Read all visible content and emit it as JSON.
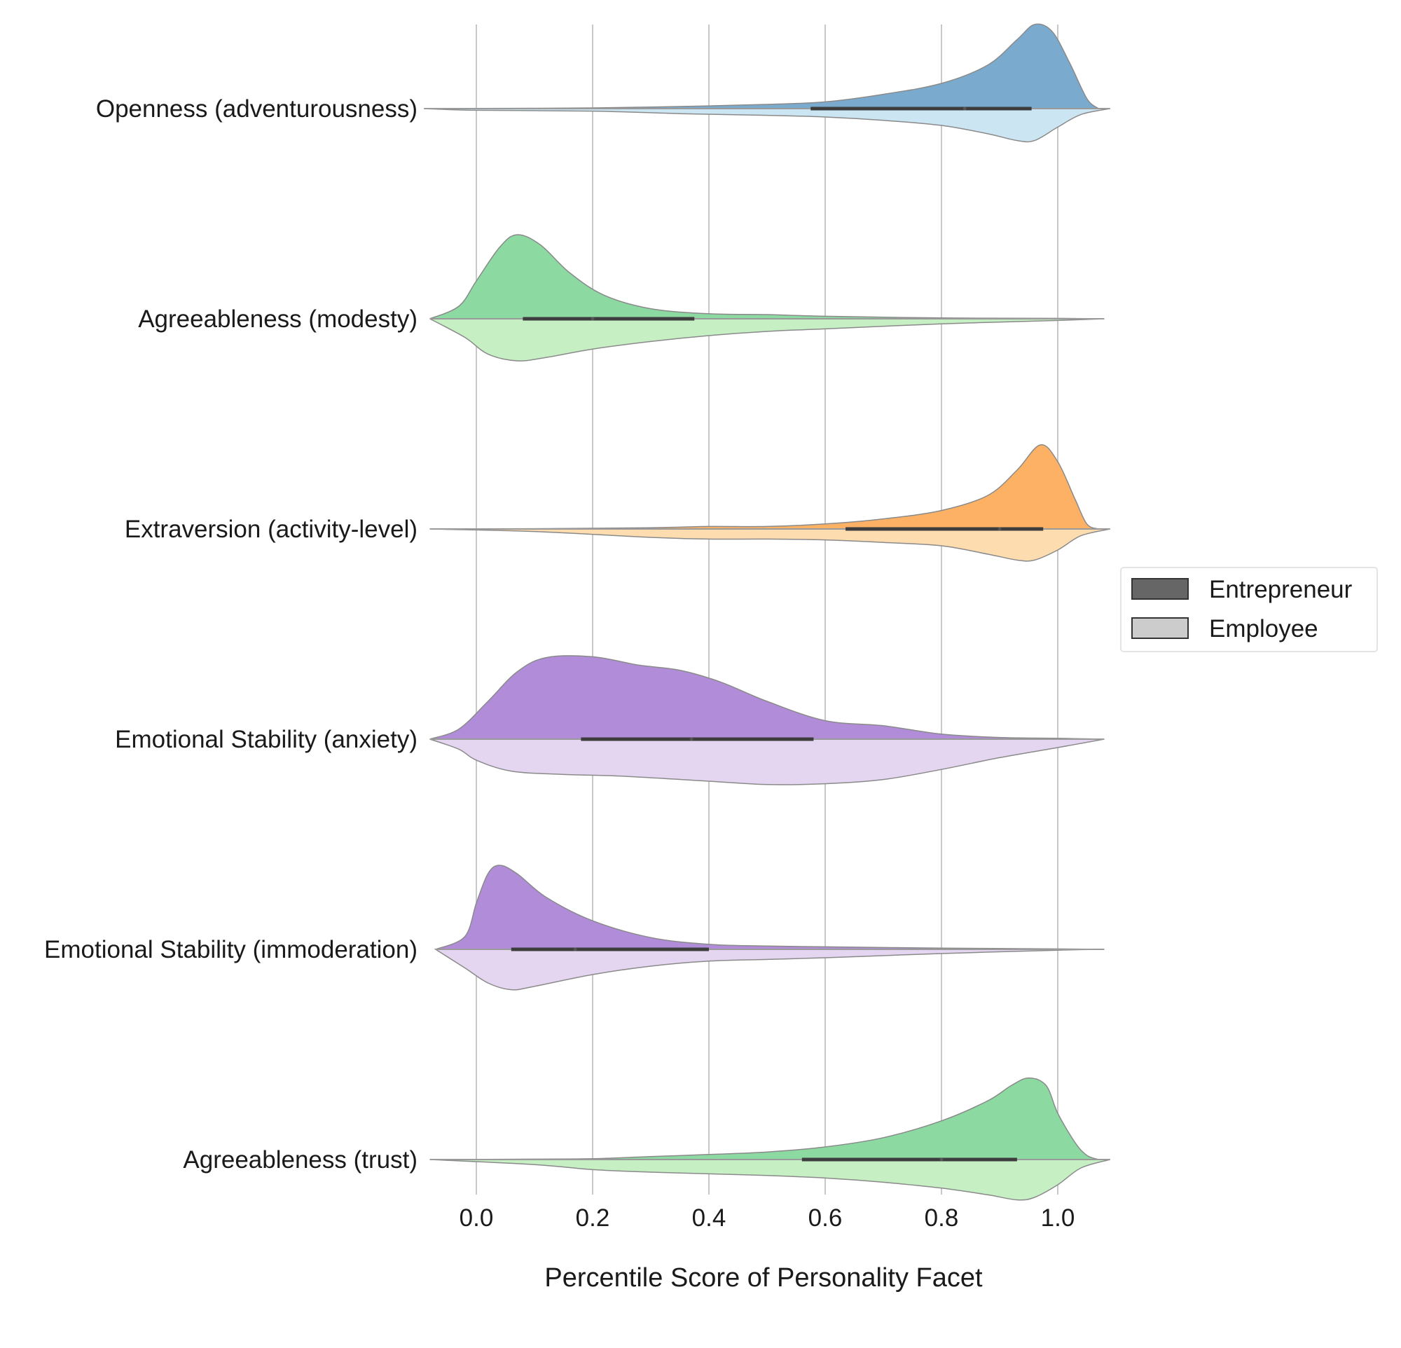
{
  "chart_data": {
    "type": "split-violin",
    "orientation": "horizontal",
    "xlabel": "Percentile Score of Personality Facet",
    "xticks": [
      "0.0",
      "0.2",
      "0.4",
      "0.6",
      "0.8",
      "1.0"
    ],
    "xlim": [
      -0.09,
      1.09
    ],
    "grid": "vertical",
    "legend": {
      "placement": "right-center",
      "entries": [
        {
          "label": "Entrepreneur",
          "color": "#666666"
        },
        {
          "label": "Employee",
          "color": "#cccccc"
        }
      ]
    },
    "categories": [
      {
        "label": "Openness (adventurousness)",
        "colors": {
          "entrepreneur": "#7aabcf",
          "employee": "#cce5f2"
        },
        "entrepreneur": {
          "density": [
            [
              -0.09,
              0
            ],
            [
              0,
              0.002
            ],
            [
              0.2,
              0.008
            ],
            [
              0.35,
              0.025
            ],
            [
              0.5,
              0.05
            ],
            [
              0.6,
              0.08
            ],
            [
              0.7,
              0.17
            ],
            [
              0.8,
              0.3
            ],
            [
              0.88,
              0.52
            ],
            [
              0.93,
              0.82
            ],
            [
              0.96,
              1.0
            ],
            [
              0.99,
              0.92
            ],
            [
              1.02,
              0.55
            ],
            [
              1.05,
              0.12
            ],
            [
              1.07,
              0
            ]
          ],
          "iqr": [
            0.575,
            0.955
          ],
          "median": 0.84
        },
        "employee": {
          "density": [
            [
              -0.09,
              0
            ],
            [
              0,
              0.02
            ],
            [
              0.2,
              0.03
            ],
            [
              0.35,
              0.06
            ],
            [
              0.5,
              0.08
            ],
            [
              0.6,
              0.1
            ],
            [
              0.7,
              0.14
            ],
            [
              0.8,
              0.2
            ],
            [
              0.88,
              0.3
            ],
            [
              0.93,
              0.38
            ],
            [
              0.96,
              0.38
            ],
            [
              1.0,
              0.22
            ],
            [
              1.04,
              0.07
            ],
            [
              1.09,
              0
            ]
          ]
        }
      },
      {
        "label": "Agreeableness (modesty)",
        "colors": {
          "entrepreneur": "#8cd9a1",
          "employee": "#c6efc4"
        },
        "entrepreneur": {
          "density": [
            [
              -0.08,
              0
            ],
            [
              -0.03,
              0.15
            ],
            [
              0,
              0.45
            ],
            [
              0.04,
              0.85
            ],
            [
              0.07,
              1.0
            ],
            [
              0.11,
              0.88
            ],
            [
              0.16,
              0.55
            ],
            [
              0.22,
              0.28
            ],
            [
              0.3,
              0.12
            ],
            [
              0.4,
              0.06
            ],
            [
              0.5,
              0.05
            ],
            [
              0.6,
              0.03
            ],
            [
              0.8,
              0.01
            ],
            [
              1.0,
              0.005
            ],
            [
              1.08,
              0
            ]
          ],
          "iqr": [
            0.08,
            0.375
          ],
          "median": 0.2
        },
        "employee": {
          "density": [
            [
              -0.08,
              0
            ],
            [
              -0.02,
              0.22
            ],
            [
              0.02,
              0.42
            ],
            [
              0.07,
              0.5
            ],
            [
              0.12,
              0.46
            ],
            [
              0.2,
              0.36
            ],
            [
              0.3,
              0.27
            ],
            [
              0.4,
              0.2
            ],
            [
              0.5,
              0.15
            ],
            [
              0.6,
              0.12
            ],
            [
              0.8,
              0.06
            ],
            [
              1.0,
              0.02
            ],
            [
              1.08,
              0
            ]
          ]
        }
      },
      {
        "label": "Extraversion (activity-level)",
        "colors": {
          "entrepreneur": "#fdb164",
          "employee": "#fddcb0"
        },
        "entrepreneur": {
          "density": [
            [
              -0.08,
              0
            ],
            [
              0.1,
              0.003
            ],
            [
              0.3,
              0.015
            ],
            [
              0.4,
              0.03
            ],
            [
              0.5,
              0.03
            ],
            [
              0.6,
              0.06
            ],
            [
              0.7,
              0.12
            ],
            [
              0.8,
              0.22
            ],
            [
              0.88,
              0.4
            ],
            [
              0.93,
              0.7
            ],
            [
              0.97,
              1.0
            ],
            [
              1.0,
              0.8
            ],
            [
              1.03,
              0.35
            ],
            [
              1.05,
              0.06
            ],
            [
              1.07,
              0
            ]
          ],
          "iqr": [
            0.635,
            0.975
          ],
          "median": 0.9
        },
        "employee": {
          "density": [
            [
              -0.08,
              0
            ],
            [
              0.1,
              0.03
            ],
            [
              0.3,
              0.1
            ],
            [
              0.4,
              0.12
            ],
            [
              0.5,
              0.12
            ],
            [
              0.6,
              0.13
            ],
            [
              0.7,
              0.16
            ],
            [
              0.8,
              0.2
            ],
            [
              0.88,
              0.3
            ],
            [
              0.93,
              0.37
            ],
            [
              0.96,
              0.37
            ],
            [
              1.0,
              0.25
            ],
            [
              1.04,
              0.08
            ],
            [
              1.09,
              0
            ]
          ]
        }
      },
      {
        "label": "Emotional Stability (anxiety)",
        "colors": {
          "entrepreneur": "#b08cd9",
          "employee": "#e4d5f0"
        },
        "entrepreneur": {
          "density": [
            [
              -0.08,
              0
            ],
            [
              -0.03,
              0.12
            ],
            [
              0.02,
              0.45
            ],
            [
              0.07,
              0.8
            ],
            [
              0.12,
              0.97
            ],
            [
              0.2,
              0.98
            ],
            [
              0.28,
              0.88
            ],
            [
              0.35,
              0.82
            ],
            [
              0.42,
              0.68
            ],
            [
              0.5,
              0.45
            ],
            [
              0.6,
              0.22
            ],
            [
              0.7,
              0.16
            ],
            [
              0.8,
              0.06
            ],
            [
              0.9,
              0.02
            ],
            [
              1.0,
              0.01
            ],
            [
              1.08,
              0
            ]
          ],
          "iqr": [
            0.18,
            0.58
          ],
          "median": 0.37
        },
        "employee": {
          "density": [
            [
              -0.08,
              0
            ],
            [
              -0.03,
              0.12
            ],
            [
              0.0,
              0.25
            ],
            [
              0.06,
              0.38
            ],
            [
              0.15,
              0.42
            ],
            [
              0.25,
              0.44
            ],
            [
              0.4,
              0.5
            ],
            [
              0.5,
              0.54
            ],
            [
              0.6,
              0.53
            ],
            [
              0.7,
              0.48
            ],
            [
              0.8,
              0.36
            ],
            [
              0.9,
              0.22
            ],
            [
              1.0,
              0.1
            ],
            [
              1.08,
              0
            ]
          ]
        }
      },
      {
        "label": "Emotional Stability (immoderation)",
        "colors": {
          "entrepreneur": "#b08cd9",
          "employee": "#e4d5f0"
        },
        "entrepreneur": {
          "density": [
            [
              -0.07,
              0
            ],
            [
              -0.02,
              0.15
            ],
            [
              0.0,
              0.55
            ],
            [
              0.02,
              0.9
            ],
            [
              0.04,
              1.0
            ],
            [
              0.07,
              0.9
            ],
            [
              0.12,
              0.62
            ],
            [
              0.2,
              0.34
            ],
            [
              0.3,
              0.14
            ],
            [
              0.4,
              0.06
            ],
            [
              0.5,
              0.04
            ],
            [
              0.6,
              0.03
            ],
            [
              0.8,
              0.015
            ],
            [
              1.0,
              0.005
            ],
            [
              1.08,
              0
            ]
          ],
          "iqr": [
            0.06,
            0.4
          ],
          "median": 0.17
        },
        "employee": {
          "density": [
            [
              -0.07,
              0
            ],
            [
              -0.02,
              0.22
            ],
            [
              0.02,
              0.4
            ],
            [
              0.06,
              0.48
            ],
            [
              0.1,
              0.44
            ],
            [
              0.2,
              0.3
            ],
            [
              0.3,
              0.2
            ],
            [
              0.4,
              0.14
            ],
            [
              0.5,
              0.12
            ],
            [
              0.6,
              0.1
            ],
            [
              0.8,
              0.05
            ],
            [
              1.0,
              0.01
            ],
            [
              1.08,
              0
            ]
          ]
        }
      },
      {
        "label": "Agreeableness (trust)",
        "colors": {
          "entrepreneur": "#8cd9a1",
          "employee": "#c6efc4"
        },
        "entrepreneur": {
          "density": [
            [
              -0.08,
              0
            ],
            [
              0.1,
              0.005
            ],
            [
              0.2,
              0.01
            ],
            [
              0.3,
              0.035
            ],
            [
              0.4,
              0.06
            ],
            [
              0.5,
              0.09
            ],
            [
              0.6,
              0.15
            ],
            [
              0.7,
              0.26
            ],
            [
              0.8,
              0.46
            ],
            [
              0.88,
              0.7
            ],
            [
              0.92,
              0.88
            ],
            [
              0.95,
              0.97
            ],
            [
              0.98,
              0.88
            ],
            [
              1.0,
              0.55
            ],
            [
              1.03,
              0.2
            ],
            [
              1.05,
              0.05
            ],
            [
              1.07,
              0
            ]
          ],
          "iqr": [
            0.56,
            0.93
          ],
          "median": 0.8
        },
        "employee": {
          "density": [
            [
              -0.08,
              0
            ],
            [
              0.1,
              0.06
            ],
            [
              0.2,
              0.12
            ],
            [
              0.3,
              0.15
            ],
            [
              0.4,
              0.17
            ],
            [
              0.5,
              0.19
            ],
            [
              0.6,
              0.22
            ],
            [
              0.7,
              0.27
            ],
            [
              0.8,
              0.34
            ],
            [
              0.88,
              0.42
            ],
            [
              0.93,
              0.48
            ],
            [
              0.96,
              0.45
            ],
            [
              1.0,
              0.3
            ],
            [
              1.04,
              0.1
            ],
            [
              1.09,
              0
            ]
          ]
        }
      }
    ]
  }
}
